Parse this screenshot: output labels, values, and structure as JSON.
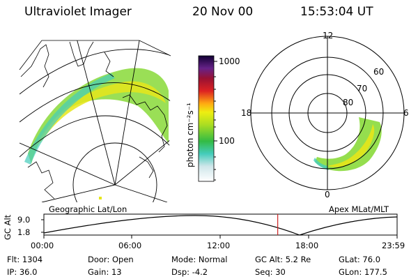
{
  "header": {
    "instrument": "Ultraviolet Imager",
    "date": "20 Nov 00",
    "time": "15:53:04 UT"
  },
  "colorbar": {
    "unit_label": "photon cm⁻²s⁻¹",
    "ticks": [
      "1000",
      "100"
    ]
  },
  "polar_plot": {
    "mlt_labels": [
      "12",
      "18",
      "6",
      "0"
    ],
    "lat_labels": [
      "60",
      "70",
      "80"
    ]
  },
  "track": {
    "left_caption": "Geographic Lat/Lon",
    "right_caption": "Apex MLat/MLT",
    "axis_title": "GC Alt",
    "alt_ticks": [
      "9.0",
      "1.8"
    ],
    "time_ticks": [
      "00:00",
      "06:00",
      "12:00",
      "18:00",
      "23:59"
    ],
    "current_time_fraction": 0.662
  },
  "status": {
    "row1": [
      {
        "label": "Flt:",
        "value": "1304"
      },
      {
        "label": "Door:",
        "value": "Open"
      },
      {
        "label": "Mode:",
        "value": "Normal"
      },
      {
        "label": "GC Alt:",
        "value": "5.2 Re"
      },
      {
        "label": "GLat:",
        "value": "76.0"
      }
    ],
    "row2": [
      {
        "label": "IP:",
        "value": "36.0"
      },
      {
        "label": "Gain:",
        "value": "13"
      },
      {
        "label": "Dsp:",
        "value": "-4.2"
      },
      {
        "label": "Seq:",
        "value": "30"
      },
      {
        "label": "GLon:",
        "value": "177.5"
      }
    ]
  },
  "colors": {
    "marker": "#cc2222",
    "aurora_core": "#e6e61a",
    "aurora_mid": "#88dd44",
    "aurora_edge": "#44ccbb"
  }
}
